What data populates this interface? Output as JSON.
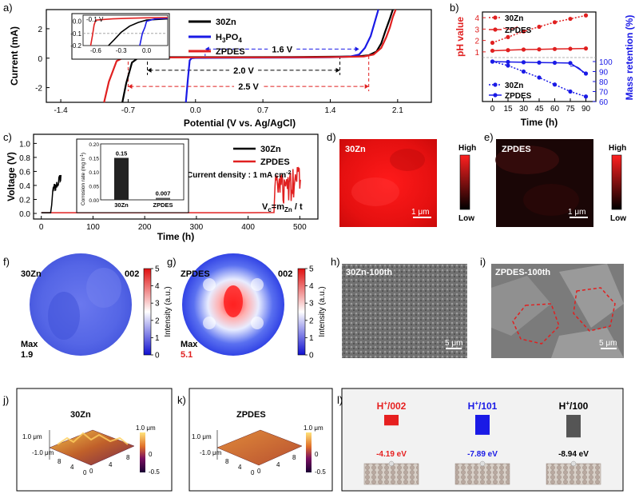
{
  "panel_labels": {
    "a": "a)",
    "b": "b)",
    "c": "c)",
    "d": "d)",
    "e": "e)",
    "f": "f)",
    "g": "g)",
    "h": "h)",
    "i": "i)",
    "j": "j)",
    "k": "k)",
    "l": "l)"
  },
  "colors": {
    "zn": "#000000",
    "h3po4": "#1a1ae6",
    "zpdes": "#e02020",
    "blue_axis": "#1a1ae6",
    "red_axis": "#e02020"
  },
  "chart_data": [
    {
      "id": "a",
      "type": "line",
      "xlabel": "Potential (V vs. Ag/AgCl)",
      "ylabel": "Current (mA)",
      "xlim": [
        -1.55,
        2.45
      ],
      "ylim": [
        -3.0,
        3.3
      ],
      "xticks": [
        "-1.4",
        "-0.7",
        "0.0",
        "0.7",
        "1.4",
        "2.1"
      ],
      "xtick_values": [
        -1.4,
        -0.7,
        0.0,
        0.7,
        1.4,
        2.1
      ],
      "yticks": [
        "-2",
        "0",
        "2"
      ],
      "ytick_values": [
        -2,
        0,
        2
      ],
      "series": [
        {
          "name": "30Zn",
          "color": "#000000",
          "x": [
            -0.76,
            -0.72,
            -0.66,
            -0.6,
            -0.5,
            -0.3,
            -0.1,
            0.5,
            1.0,
            1.5,
            1.7,
            1.8,
            1.88,
            1.93,
            1.97,
            2.02,
            2.05
          ],
          "y": [
            -3.0,
            -1.7,
            -0.3,
            0.0,
            0.05,
            0.07,
            0.07,
            0.07,
            0.08,
            0.1,
            0.13,
            0.2,
            0.45,
            1.0,
            1.8,
            2.7,
            3.3
          ]
        },
        {
          "name": "H3PO4",
          "color": "#1a1ae6",
          "x": [
            -0.1,
            -0.08,
            -0.06,
            -0.04,
            0.0,
            0.5,
            1.0,
            1.4,
            1.6,
            1.7,
            1.76,
            1.82,
            1.86,
            1.9
          ],
          "y": [
            -3.0,
            -1.5,
            -0.15,
            0.0,
            0.02,
            0.03,
            0.04,
            0.06,
            0.1,
            0.25,
            0.7,
            1.5,
            2.4,
            3.3
          ]
        },
        {
          "name": "ZPDES",
          "color": "#e02020",
          "x": [
            -0.95,
            -0.9,
            -0.82,
            -0.76,
            -0.7,
            -0.5,
            0.0,
            0.5,
            1.0,
            1.5,
            1.75,
            1.85,
            1.93,
            1.98,
            2.02,
            2.05,
            2.08
          ],
          "y": [
            -3.0,
            -1.6,
            -0.2,
            0.0,
            0.03,
            0.04,
            0.05,
            0.05,
            0.06,
            0.08,
            0.12,
            0.25,
            0.7,
            1.4,
            2.1,
            2.8,
            3.3
          ]
        }
      ],
      "windows": [
        {
          "label": "1.6 V",
          "from": 0.1,
          "to": 1.7,
          "color": "#1a1ae6"
        },
        {
          "label": "2.0 V",
          "from": -0.5,
          "to": 1.5,
          "color": "#000000"
        },
        {
          "label": "2.5 V",
          "from": -0.7,
          "to": 1.8,
          "color": "#e02020"
        }
      ],
      "inset": {
        "xlim": [
          -0.75,
          0.25
        ],
        "ylim": [
          -0.2,
          0.05
        ],
        "xticks": [
          "-0.6",
          "-0.3",
          "0.0"
        ],
        "xtick_values": [
          -0.6,
          -0.3,
          0.0
        ],
        "yticks": [
          "0.0",
          "-0.1",
          "-0.2"
        ],
        "ytick_values": [
          0.0,
          -0.1,
          -0.2
        ],
        "annotation": "-0.1 V",
        "series": [
          {
            "name": "30Zn",
            "color": "#000000",
            "x": [
              -0.45,
              -0.38,
              -0.3,
              -0.2,
              -0.1,
              0.0,
              0.25
            ],
            "y": [
              -0.2,
              -0.15,
              -0.09,
              -0.04,
              -0.01,
              0.01,
              0.02
            ]
          },
          {
            "name": "H3PO4",
            "color": "#1a1ae6",
            "x": [
              -0.08,
              -0.05,
              -0.02,
              0.0,
              0.1,
              0.25
            ],
            "y": [
              -0.2,
              -0.1,
              -0.05,
              0.0,
              0.02,
              0.025
            ]
          },
          {
            "name": "ZPDES",
            "color": "#e02020",
            "x": [
              -0.66,
              -0.64,
              -0.62,
              -0.6,
              -0.4,
              -0.2,
              0.0,
              0.25
            ],
            "y": [
              -0.2,
              -0.12,
              -0.03,
              0.01,
              0.02,
              0.025,
              0.028,
              0.03
            ]
          }
        ]
      }
    },
    {
      "id": "b",
      "type": "line",
      "xlabel": "Time (h)",
      "ylabel_left": "pH value",
      "ylabel_right": "Mass retention (%)",
      "xticks": [
        "0",
        "15",
        "30",
        "45",
        "60",
        "75",
        "90"
      ],
      "xtick_values": [
        0,
        15,
        30,
        45,
        60,
        75,
        90
      ],
      "ph_ticks": [
        "1",
        "2",
        "3",
        "4"
      ],
      "ph_tick_values": [
        1,
        2,
        3,
        4
      ],
      "mass_ticks": [
        "60",
        "70",
        "80",
        "90",
        "100"
      ],
      "mass_tick_values": [
        60,
        70,
        80,
        90,
        100
      ],
      "ph_series": [
        {
          "name": "30Zn",
          "color": "#e02020",
          "dotted": true,
          "x": [
            0,
            15,
            30,
            45,
            60,
            75,
            90
          ],
          "y": [
            1.8,
            2.3,
            2.8,
            3.2,
            3.6,
            3.9,
            4.2
          ]
        },
        {
          "name": "ZPDES",
          "color": "#e02020",
          "dotted": false,
          "x": [
            0,
            15,
            30,
            45,
            60,
            75,
            90
          ],
          "y": [
            1.1,
            1.15,
            1.2,
            1.22,
            1.25,
            1.27,
            1.3
          ]
        }
      ],
      "mass_series": [
        {
          "name": "30Zn",
          "color": "#1a1ae6",
          "dotted": true,
          "x": [
            0,
            15,
            30,
            45,
            60,
            75,
            90
          ],
          "y": [
            100,
            96,
            90,
            84,
            77,
            70,
            65
          ]
        },
        {
          "name": "ZPDES",
          "color": "#1a1ae6",
          "dotted": false,
          "x": [
            0,
            15,
            30,
            45,
            60,
            75,
            90
          ],
          "y": [
            100,
            99.6,
            99.3,
            99,
            98.8,
            98.5,
            88
          ]
        }
      ]
    },
    {
      "id": "c",
      "type": "line",
      "xlabel": "Time (h)",
      "ylabel": "Voltage (V)",
      "xticks": [
        "0",
        "100",
        "200",
        "300",
        "400",
        "500"
      ],
      "xtick_values": [
        0,
        100,
        200,
        300,
        400,
        500
      ],
      "yticks": [
        "0.0",
        "0.2",
        "0.4",
        "0.6",
        "0.8",
        "1.0"
      ],
      "ytick_values": [
        0.0,
        0.2,
        0.4,
        0.6,
        0.8,
        1.0
      ],
      "series": [
        {
          "name": "30Zn",
          "color": "#000000"
        },
        {
          "name": "ZPDES",
          "color": "#e02020"
        }
      ],
      "annotation_density": "Current density : 1 mA cm",
      "annotation_density_sup": "-2",
      "annotation_formula": "V",
      "annotation_formula_sub": "c",
      "annotation_formula_rest": "=m",
      "annotation_formula_sub2": "Zn",
      "annotation_formula_end": " / t",
      "inset": {
        "type": "bar",
        "ylabel": "Corrosion rate (mg h",
        "ylabel_sup": "-1",
        "ylabel_end": ")",
        "categories": [
          "30Zn",
          "ZPDES"
        ],
        "values": [
          0.15,
          0.007
        ],
        "value_labels": [
          "0.15",
          "0.007"
        ],
        "yticks": [
          "0.00",
          "0.05",
          "0.10",
          "0.15",
          "0.20"
        ],
        "ytick_values": [
          0,
          0.05,
          0.1,
          0.15,
          0.2
        ]
      }
    },
    {
      "id": "f",
      "type": "heatmap",
      "label": "30Zn",
      "plane": "002",
      "max_label": "Max",
      "max_value": "1.9",
      "colorbar_label": "Intensity (a.u.)",
      "colorbar_ticks": [
        "0",
        "1",
        "2",
        "3",
        "4",
        "5"
      ],
      "colorbar_tick_values": [
        0,
        1,
        2,
        3,
        4,
        5
      ]
    },
    {
      "id": "g",
      "type": "heatmap",
      "label": "ZPDES",
      "plane": "002",
      "max_label": "Max",
      "max_value": "5.1",
      "colorbar_label": "Intensity (a.u.)",
      "colorbar_ticks": [
        "0",
        "1",
        "2",
        "3",
        "4",
        "5"
      ],
      "colorbar_tick_values": [
        0,
        1,
        2,
        3,
        4,
        5
      ]
    },
    {
      "id": "l",
      "type": "bar",
      "categories": [
        "H+/002",
        "H+/101",
        "H+/100"
      ],
      "labels": [
        {
          "main": "H",
          "sup": "+",
          "rest": "/002"
        },
        {
          "main": "H",
          "sup": "+",
          "rest": "/101"
        },
        {
          "main": "H",
          "sup": "+",
          "rest": "/100"
        }
      ],
      "values": [
        -4.19,
        -7.89,
        -8.94
      ],
      "value_labels": [
        "-4.19 eV",
        "-7.89 eV",
        "-8.94 eV"
      ],
      "colors": [
        "#e62020",
        "#1a1ae6",
        "#555555"
      ]
    }
  ],
  "panel_d": {
    "label": "30Zn",
    "scale": "1 μm",
    "cb_high": "High",
    "cb_low": "Low"
  },
  "panel_e": {
    "label": "ZPDES",
    "scale": "1 μm",
    "cb_high": "High",
    "cb_low": "Low"
  },
  "panel_h": {
    "label": "30Zn-100th",
    "scale": "5 μm"
  },
  "panel_i": {
    "label": "ZPDES-100th",
    "scale": "5 μm"
  },
  "panel_j": {
    "label": "30Zn",
    "z_top": "1.0 μm",
    "z_bottom": "-1.0 μm",
    "cb_top": "1.0 μm",
    "cb_mid": "0",
    "cb_bottom": "-0.5",
    "x_ticks": [
      "0",
      "4",
      "8"
    ],
    "y_ticks": [
      "8",
      "4",
      "0"
    ]
  },
  "panel_k": {
    "label": "ZPDES",
    "z_top": "1.0 μm",
    "z_bottom": "-1.0 μm",
    "cb_top": "1.0 μm",
    "cb_mid": "0",
    "cb_bottom": "-0.5",
    "x_ticks": [
      "0",
      "4",
      "8"
    ],
    "y_ticks": [
      "8",
      "4",
      "0"
    ]
  }
}
